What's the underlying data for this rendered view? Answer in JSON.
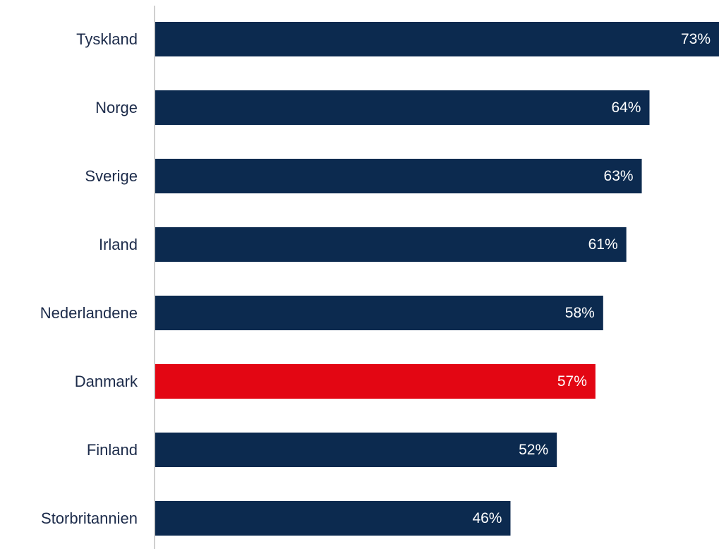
{
  "chart_data": {
    "type": "bar",
    "orientation": "horizontal",
    "categories": [
      "Tyskland",
      "Norge",
      "Sverige",
      "Irland",
      "Nederlandene",
      "Danmark",
      "Finland",
      "Storbritannien"
    ],
    "values": [
      73,
      64,
      63,
      61,
      58,
      57,
      52,
      46
    ],
    "value_labels": [
      "73%",
      "64%",
      "63%",
      "61%",
      "58%",
      "57%",
      "52%",
      "46%"
    ],
    "highlight": "Danmark",
    "title": "",
    "xlabel": "",
    "ylabel": "",
    "xlim": [
      0,
      73
    ],
    "grid": false,
    "legend": "none",
    "colors": {
      "default_bar": "#0c2a4f",
      "highlight_bar": "#e30613",
      "axis_line": "#cfcfcf",
      "category_text": "#1c2b4a",
      "value_text": "#ffffff"
    }
  }
}
